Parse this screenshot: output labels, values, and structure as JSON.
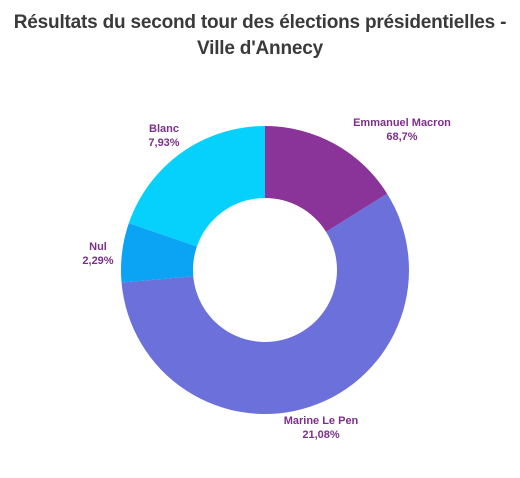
{
  "title_line1": "Résultats du second tour des élections présidentielles -",
  "title_line2": "Ville d'Annecy",
  "chart_data": {
    "type": "pie",
    "variant": "donut",
    "title": "Résultats du second tour des élections présidentielles - Ville d'Annecy",
    "slices": [
      {
        "label": "Emmanuel Macron",
        "display_value": "68,7%",
        "color": "#8a3399"
      },
      {
        "label": "Marine Le Pen",
        "display_value": "21,08%",
        "color": "#6b70da"
      },
      {
        "label": "Nul",
        "display_value": "2,29%",
        "color": "#0ba3f4"
      },
      {
        "label": "Blanc",
        "display_value": "7,93%",
        "color": "#06d0fc"
      }
    ],
    "label_color": "#7d2f8c"
  }
}
